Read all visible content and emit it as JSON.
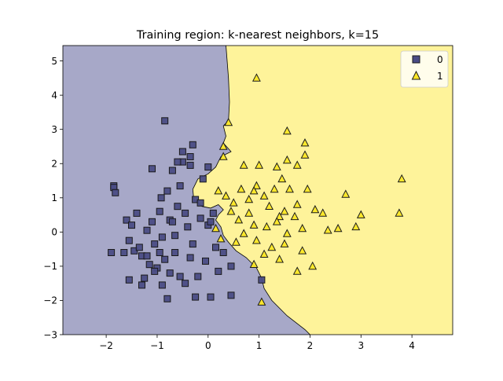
{
  "chart_data": {
    "type": "scatter",
    "title": "Training region: k-nearest neighbors, k=15",
    "xlabel": "",
    "ylabel": "",
    "xlim": [
      -2.85,
      4.8
    ],
    "ylim": [
      -3.0,
      5.45
    ],
    "xticks": [
      -2,
      -1,
      0,
      1,
      2,
      3,
      4
    ],
    "yticks": [
      -3,
      -2,
      -1,
      0,
      1,
      2,
      3,
      4,
      5
    ],
    "grid": false,
    "legend_position": "top-right",
    "colors": {
      "class0_region": "#a7a8c8",
      "class1_region": "#fef39a",
      "class0_marker": "#4a4c85",
      "class1_marker": "#fde725",
      "edge": "#1a1a1a"
    },
    "decision_boundary": [
      [
        0.35,
        5.45
      ],
      [
        0.4,
        4.5
      ],
      [
        0.42,
        3.8
      ],
      [
        0.4,
        3.25
      ],
      [
        0.3,
        3.1
      ],
      [
        0.35,
        2.8
      ],
      [
        0.3,
        2.6
      ],
      [
        0.45,
        2.35
      ],
      [
        0.25,
        2.2
      ],
      [
        0.15,
        1.9
      ],
      [
        0.0,
        1.7
      ],
      [
        -0.2,
        1.55
      ],
      [
        -0.3,
        1.25
      ],
      [
        -0.28,
        0.95
      ],
      [
        -0.12,
        0.75
      ],
      [
        0.05,
        0.7
      ],
      [
        0.2,
        0.8
      ],
      [
        0.3,
        0.65
      ],
      [
        0.2,
        0.5
      ],
      [
        0.15,
        0.35
      ],
      [
        0.25,
        0.15
      ],
      [
        0.3,
        -0.1
      ],
      [
        0.4,
        -0.3
      ],
      [
        0.55,
        -0.55
      ],
      [
        0.75,
        -0.75
      ],
      [
        0.95,
        -1.05
      ],
      [
        1.05,
        -1.35
      ],
      [
        1.1,
        -1.65
      ],
      [
        1.25,
        -2.0
      ],
      [
        1.55,
        -2.45
      ],
      [
        1.9,
        -2.85
      ],
      [
        2.0,
        -3.0
      ]
    ],
    "series": [
      {
        "name": "0",
        "marker": "square",
        "points": [
          [
            -1.85,
            1.35
          ],
          [
            -1.85,
            1.3
          ],
          [
            -1.82,
            1.15
          ],
          [
            -1.9,
            -0.6
          ],
          [
            -1.65,
            -0.6
          ],
          [
            -1.55,
            -1.4
          ],
          [
            -1.6,
            0.35
          ],
          [
            -1.55,
            -0.25
          ],
          [
            -1.5,
            0.2
          ],
          [
            -1.45,
            -0.55
          ],
          [
            -1.4,
            0.55
          ],
          [
            -1.35,
            -0.45
          ],
          [
            -1.3,
            -0.7
          ],
          [
            -1.25,
            -1.35
          ],
          [
            -1.2,
            0.05
          ],
          [
            -1.15,
            -0.95
          ],
          [
            -1.1,
            1.85
          ],
          [
            -1.1,
            0.3
          ],
          [
            -1.05,
            -0.35
          ],
          [
            -1.0,
            -1.05
          ],
          [
            -0.95,
            0.6
          ],
          [
            -0.92,
            1.0
          ],
          [
            -0.9,
            -0.15
          ],
          [
            -0.85,
            -0.8
          ],
          [
            -0.8,
            1.2
          ],
          [
            -0.75,
            0.35
          ],
          [
            -0.7,
            1.8
          ],
          [
            -0.65,
            -0.6
          ],
          [
            -0.6,
            0.75
          ],
          [
            -0.55,
            1.35
          ],
          [
            -0.5,
            2.05
          ],
          [
            -0.45,
            -1.5
          ],
          [
            -0.4,
            0.15
          ],
          [
            -0.35,
            2.2
          ],
          [
            -0.3,
            -0.35
          ],
          [
            -0.25,
            0.95
          ],
          [
            -0.2,
            -1.3
          ],
          [
            -0.15,
            0.4
          ],
          [
            -0.1,
            1.55
          ],
          [
            -0.05,
            -0.85
          ],
          [
            0.0,
            0.2
          ],
          [
            0.05,
            -1.9
          ],
          [
            0.1,
            0.55
          ],
          [
            0.15,
            -0.45
          ],
          [
            0.2,
            -1.15
          ],
          [
            -0.85,
            3.25
          ],
          [
            -0.5,
            2.35
          ],
          [
            -0.3,
            2.55
          ],
          [
            -0.6,
            2.05
          ],
          [
            -0.35,
            1.95
          ],
          [
            0.0,
            1.9
          ],
          [
            -0.8,
            -1.95
          ],
          [
            -0.55,
            -1.3
          ],
          [
            -0.25,
            -1.9
          ],
          [
            0.45,
            -1.85
          ],
          [
            0.45,
            -1.0
          ],
          [
            -0.7,
            0.3
          ],
          [
            -0.95,
            -0.6
          ],
          [
            -1.2,
            -0.7
          ],
          [
            -0.65,
            -0.1
          ],
          [
            -0.35,
            -0.75
          ],
          [
            -0.15,
            0.85
          ],
          [
            0.05,
            0.3
          ],
          [
            -0.45,
            0.55
          ],
          [
            -0.75,
            -1.2
          ],
          [
            -1.05,
            -1.15
          ],
          [
            -1.3,
            -1.55
          ],
          [
            -0.9,
            -1.55
          ],
          [
            1.05,
            -1.4
          ],
          [
            0.3,
            -0.6
          ]
        ]
      },
      {
        "name": "1",
        "marker": "triangle",
        "points": [
          [
            0.95,
            4.5
          ],
          [
            0.4,
            3.2
          ],
          [
            0.3,
            2.5
          ],
          [
            0.3,
            2.2
          ],
          [
            0.7,
            1.95
          ],
          [
            1.0,
            1.95
          ],
          [
            1.55,
            2.95
          ],
          [
            1.9,
            2.6
          ],
          [
            1.9,
            2.25
          ],
          [
            1.55,
            2.1
          ],
          [
            1.35,
            1.9
          ],
          [
            1.75,
            1.95
          ],
          [
            1.45,
            1.55
          ],
          [
            0.95,
            1.35
          ],
          [
            0.9,
            1.2
          ],
          [
            1.3,
            1.25
          ],
          [
            1.6,
            1.25
          ],
          [
            1.95,
            1.25
          ],
          [
            2.7,
            1.1
          ],
          [
            3.8,
            1.55
          ],
          [
            2.1,
            0.65
          ],
          [
            2.25,
            0.55
          ],
          [
            3.0,
            0.5
          ],
          [
            3.75,
            0.55
          ],
          [
            1.4,
            0.45
          ],
          [
            1.7,
            0.45
          ],
          [
            0.8,
            0.55
          ],
          [
            0.6,
            0.35
          ],
          [
            0.9,
            0.2
          ],
          [
            1.15,
            0.15
          ],
          [
            1.35,
            0.3
          ],
          [
            1.55,
            -0.05
          ],
          [
            1.85,
            0.1
          ],
          [
            2.35,
            0.05
          ],
          [
            2.55,
            0.1
          ],
          [
            2.9,
            0.15
          ],
          [
            0.7,
            -0.05
          ],
          [
            0.95,
            -0.25
          ],
          [
            1.25,
            -0.45
          ],
          [
            1.5,
            -0.35
          ],
          [
            1.85,
            -0.55
          ],
          [
            2.05,
            -1.0
          ],
          [
            1.75,
            -1.15
          ],
          [
            1.4,
            -0.8
          ],
          [
            1.1,
            -0.65
          ],
          [
            0.9,
            -0.95
          ],
          [
            1.05,
            -2.05
          ],
          [
            0.5,
            0.85
          ],
          [
            0.45,
            0.6
          ],
          [
            0.2,
            1.2
          ],
          [
            0.35,
            1.05
          ],
          [
            0.55,
            -0.3
          ],
          [
            0.15,
            0.1
          ],
          [
            0.25,
            -0.2
          ],
          [
            0.8,
            0.95
          ],
          [
            1.2,
            0.75
          ],
          [
            1.5,
            0.6
          ],
          [
            1.75,
            0.8
          ],
          [
            0.65,
            1.25
          ],
          [
            1.1,
            1.05
          ]
        ]
      }
    ]
  }
}
